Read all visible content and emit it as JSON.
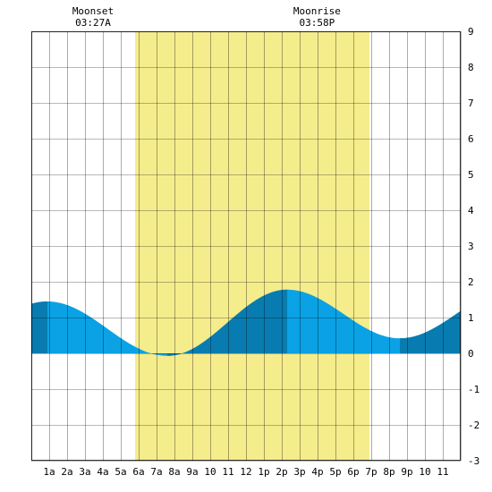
{
  "chart_data": {
    "type": "area",
    "x_hours": [
      0,
      1,
      2,
      3,
      4,
      5,
      6,
      7,
      8,
      9,
      10,
      11,
      12,
      13,
      14,
      15,
      16,
      17,
      18,
      19,
      20,
      21,
      22,
      23,
      24
    ],
    "x_tick_labels": [
      "1a",
      "2a",
      "3a",
      "4a",
      "5a",
      "6a",
      "7a",
      "8a",
      "9a",
      "10",
      "11",
      "12",
      "1p",
      "2p",
      "3p",
      "4p",
      "5p",
      "6p",
      "7p",
      "8p",
      "9p",
      "10",
      "11"
    ],
    "y_tick_labels": [
      "9",
      "8",
      "7",
      "6",
      "5",
      "4",
      "3",
      "2",
      "1",
      "0",
      "-1",
      "-2",
      "-3"
    ],
    "ylim": [
      -3,
      9
    ],
    "xlim": [
      0,
      24
    ],
    "grid": true,
    "tide_extremes": [
      {
        "hour": 0.9,
        "value": 1.45,
        "kind": "high"
      },
      {
        "hour": 7.6,
        "value": -0.07,
        "kind": "low"
      },
      {
        "hour": 14.3,
        "value": 1.78,
        "kind": "high"
      },
      {
        "hour": 20.6,
        "value": 0.42,
        "kind": "low"
      }
    ],
    "daylight_hours": [
      5.8,
      18.9
    ],
    "rising_shading_segments": [
      [
        0,
        0.9
      ],
      [
        7.6,
        14.3
      ],
      [
        20.6,
        24
      ]
    ],
    "moon_events": [
      {
        "label": "Moonset",
        "time": "03:27A",
        "hour": 3.45
      },
      {
        "label": "Moonrise",
        "time": "03:58P",
        "hour": 15.97
      }
    ],
    "colors": {
      "background": "#ffffff",
      "daylight": "#f5ec8c",
      "grid": "#000000",
      "tide_falling": "#0aa2e4",
      "tide_rising": "#087cb0"
    }
  }
}
